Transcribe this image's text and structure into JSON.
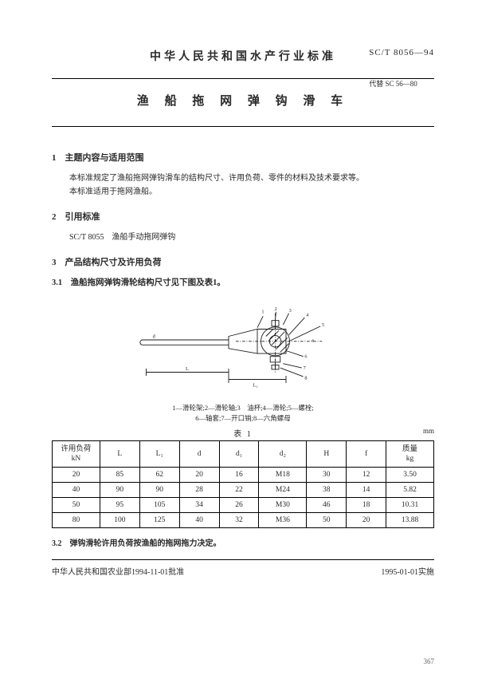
{
  "header": {
    "country_title": "中华人民共和国水产行业标准",
    "code_main": "SC/T 8056—94",
    "code_sub": "代替 SC 56—80",
    "doc_title": "渔 船 拖 网 弹 钩 滑 车"
  },
  "sections": {
    "s1": {
      "heading": "1　主题内容与适用范围",
      "p1": "本标准规定了渔船拖网弹钩滑车的结构尺寸、许用负荷、零件的材料及技术要求等。",
      "p2": "本标准适用于拖网渔船。"
    },
    "s2": {
      "heading": "2　引用标准",
      "p1": "SC/T 8055　渔船手动拖网弹钩"
    },
    "s3": {
      "heading": "3　产品结构尺寸及许用负荷",
      "sub31_heading": "3.1　渔船拖网弹钩滑轮结构尺寸见下图及表1。",
      "sub32_heading": "3.2　弹钩滑轮许用负荷按渔船的拖网拖力决定。"
    }
  },
  "diagram": {
    "caption_line1": "1—滑轮架;2—滑轮轴;3　油杯;4—滑轮;5—螺栓;",
    "caption_line2": "6—轴套;7—开口销;8—六角螺母",
    "callouts": [
      "1",
      "2",
      "3",
      "4",
      "5",
      "6",
      "7",
      "8"
    ],
    "dim_labels": [
      "L",
      "L₁",
      "d",
      "d₁",
      "H",
      "f",
      "e"
    ],
    "stroke": "#1a1a1a",
    "hatch": "#1a1a1a"
  },
  "table": {
    "title": "表 1",
    "unit": "mm",
    "columns": [
      "许用负荷\nkN",
      "L",
      "L₁",
      "d",
      "d₁",
      "d₂",
      "H",
      "f",
      "质量\nkg"
    ],
    "col_widths": [
      "12%",
      "10%",
      "10%",
      "10%",
      "10%",
      "12%",
      "10%",
      "10%",
      "12%"
    ],
    "rows": [
      [
        "20",
        "85",
        "62",
        "20",
        "16",
        "M18",
        "30",
        "12",
        "3.50"
      ],
      [
        "40",
        "90",
        "90",
        "28",
        "22",
        "M24",
        "38",
        "14",
        "5.82"
      ],
      [
        "50",
        "95",
        "105",
        "34",
        "26",
        "M30",
        "46",
        "18",
        "10.31"
      ],
      [
        "80",
        "100",
        "125",
        "40",
        "32",
        "M36",
        "50",
        "20",
        "13.88"
      ]
    ]
  },
  "footer": {
    "left": "中华人民共和国农业部1994-11-01批准",
    "right": "1995-01-01实施",
    "page_num": "367"
  }
}
